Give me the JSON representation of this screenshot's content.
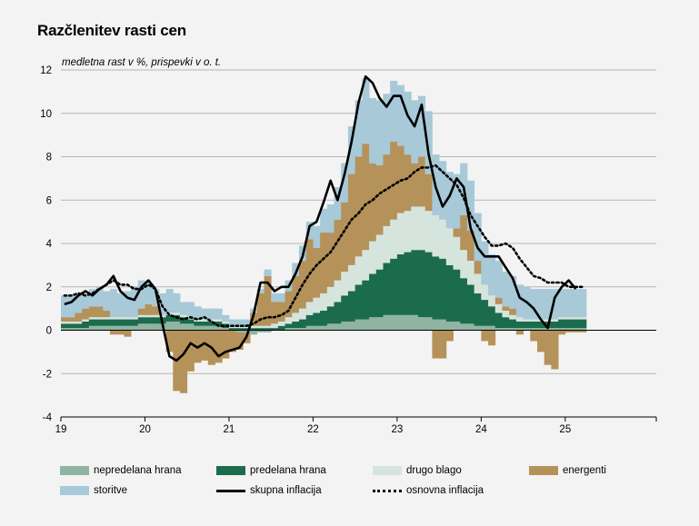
{
  "title": "Razčlenitev rasti cen",
  "ylabel": "medletna rast v %, prispevki v o. t.",
  "chart_data": {
    "type": "bar",
    "stacked": true,
    "ylim": [
      -4,
      12
    ],
    "yticks": [
      -4,
      -2,
      0,
      2,
      4,
      6,
      8,
      10,
      12
    ],
    "xticks": [
      {
        "label": "19",
        "index": 0
      },
      {
        "label": "20",
        "index": 12
      },
      {
        "label": "21",
        "index": 24
      },
      {
        "label": "22",
        "index": 36
      },
      {
        "label": "23",
        "index": 48
      },
      {
        "label": "24",
        "index": 60
      },
      {
        "label": "25",
        "index": 72
      }
    ],
    "months": 85,
    "grid": true,
    "legend_position": "bottom",
    "series": [
      {
        "name": "nepredelana hrana",
        "color": "#8fb5a2",
        "values": [
          0.1,
          0.1,
          0.1,
          0.1,
          0.2,
          0.2,
          0.2,
          0.2,
          0.2,
          0.2,
          0.2,
          0.3,
          0.3,
          0.3,
          0.3,
          0.4,
          0.4,
          0.3,
          0.3,
          0.2,
          0.2,
          0.2,
          0.2,
          0.1,
          0.0,
          -0.1,
          -0.1,
          -0.2,
          -0.1,
          -0.1,
          0.0,
          0.0,
          0.1,
          0.1,
          0.1,
          0.2,
          0.2,
          0.2,
          0.3,
          0.3,
          0.4,
          0.4,
          0.5,
          0.5,
          0.6,
          0.6,
          0.7,
          0.7,
          0.7,
          0.7,
          0.7,
          0.6,
          0.6,
          0.5,
          0.5,
          0.4,
          0.4,
          0.3,
          0.3,
          0.2,
          0.2,
          0.2,
          0.1,
          0.1,
          0.1,
          0.1,
          0.1,
          0.1,
          0.1,
          0.1,
          0.1,
          0.1,
          0.1,
          0.1,
          0.1
        ]
      },
      {
        "name": "predelana hrana",
        "color": "#1b6b4d",
        "values": [
          0.2,
          0.2,
          0.2,
          0.3,
          0.3,
          0.3,
          0.3,
          0.3,
          0.3,
          0.3,
          0.3,
          0.3,
          0.3,
          0.3,
          0.3,
          0.3,
          0.3,
          0.3,
          0.2,
          0.2,
          0.2,
          0.2,
          0.2,
          0.2,
          0.1,
          0.1,
          0.1,
          0.1,
          0.1,
          0.1,
          0.1,
          0.2,
          0.2,
          0.3,
          0.4,
          0.5,
          0.6,
          0.7,
          0.8,
          1.0,
          1.2,
          1.4,
          1.6,
          1.8,
          2.0,
          2.2,
          2.4,
          2.6,
          2.8,
          2.9,
          3.0,
          3.1,
          3.0,
          2.9,
          2.8,
          2.6,
          2.4,
          2.1,
          1.8,
          1.5,
          1.2,
          0.9,
          0.7,
          0.5,
          0.4,
          0.3,
          0.3,
          0.3,
          0.3,
          0.3,
          0.3,
          0.4,
          0.4,
          0.4,
          0.4
        ]
      },
      {
        "name": "drugo blago",
        "color": "#d6e4de",
        "values": [
          0.1,
          0.1,
          0.1,
          0.1,
          0.1,
          0.1,
          0.1,
          0.1,
          0.1,
          0.1,
          0.1,
          0.1,
          0.1,
          0.1,
          0.1,
          0.1,
          0.1,
          0.1,
          0.1,
          0.1,
          0.1,
          0.1,
          0.1,
          0.1,
          0.1,
          0.1,
          0.1,
          0.1,
          0.1,
          0.1,
          0.2,
          0.2,
          0.3,
          0.4,
          0.5,
          0.6,
          0.7,
          0.8,
          0.9,
          1.0,
          1.1,
          1.2,
          1.3,
          1.4,
          1.5,
          1.6,
          1.7,
          1.8,
          1.9,
          1.9,
          2.0,
          2.0,
          1.9,
          1.9,
          1.8,
          1.7,
          1.5,
          1.3,
          1.1,
          0.9,
          0.7,
          0.5,
          0.4,
          0.3,
          0.2,
          0.2,
          0.1,
          0.1,
          0.1,
          0.1,
          0.1,
          0.1,
          0.1,
          0.1,
          0.1
        ]
      },
      {
        "name": "energenti",
        "color": "#b5925a",
        "values": [
          0.2,
          0.2,
          0.4,
          0.5,
          0.5,
          0.5,
          0.3,
          -0.2,
          -0.2,
          -0.3,
          0.0,
          0.3,
          0.5,
          0.4,
          0.0,
          -1.0,
          -2.8,
          -2.9,
          -1.9,
          -1.5,
          -1.4,
          -1.6,
          -1.5,
          -1.3,
          -1.0,
          -0.8,
          -0.5,
          0.6,
          1.5,
          2.3,
          1.0,
          0.9,
          1.2,
          1.7,
          2.2,
          2.9,
          2.3,
          2.8,
          2.5,
          2.8,
          3.2,
          4.2,
          4.6,
          4.9,
          3.6,
          3.2,
          3.3,
          3.6,
          3.1,
          2.6,
          2.0,
          2.3,
          1.7,
          -1.3,
          -1.3,
          -0.5,
          0.4,
          1.6,
          1.4,
          0.6,
          -0.5,
          -0.7,
          0.3,
          0.2,
          0.3,
          -0.2,
          0.0,
          -0.5,
          -1.0,
          -1.6,
          -1.8,
          -0.2,
          -0.1,
          -0.1,
          -0.1
        ]
      },
      {
        "name": "storitve",
        "color": "#a7c9d8",
        "values": [
          1.0,
          1.0,
          0.9,
          0.6,
          0.8,
          0.9,
          0.9,
          1.3,
          1.1,
          1.2,
          1.4,
          1.3,
          1.0,
          0.8,
          1.0,
          1.1,
          0.9,
          0.6,
          0.7,
          0.6,
          0.5,
          0.5,
          0.5,
          0.3,
          0.3,
          0.3,
          0.3,
          0.2,
          0.2,
          0.3,
          0.4,
          0.4,
          0.5,
          0.6,
          0.7,
          0.8,
          1.0,
          1.1,
          1.3,
          1.5,
          1.8,
          2.2,
          2.6,
          3.0,
          3.0,
          3.0,
          2.8,
          2.8,
          2.8,
          2.9,
          2.9,
          2.8,
          2.9,
          2.8,
          2.7,
          2.6,
          2.5,
          2.4,
          2.3,
          2.2,
          2.0,
          1.9,
          1.7,
          1.6,
          1.5,
          1.5,
          1.5,
          1.4,
          1.4,
          1.4,
          1.4,
          1.3,
          1.3,
          1.3,
          1.3
        ]
      },
      {
        "name": "skupna inflacija",
        "type": "line",
        "color": "#000000",
        "style": "solid",
        "values": [
          1.2,
          1.3,
          1.6,
          1.8,
          1.6,
          1.9,
          2.1,
          2.5,
          1.8,
          1.5,
          1.4,
          2.0,
          2.3,
          1.9,
          0.3,
          -1.2,
          -1.4,
          -1.1,
          -0.6,
          -0.8,
          -0.6,
          -0.8,
          -1.2,
          -1.0,
          -0.9,
          -0.8,
          -0.3,
          0.7,
          2.2,
          2.2,
          1.8,
          2.0,
          2.0,
          2.6,
          3.4,
          4.8,
          5.0,
          5.9,
          6.9,
          6.0,
          7.2,
          8.7,
          10.5,
          11.7,
          11.4,
          10.7,
          10.3,
          10.8,
          10.8,
          9.9,
          9.4,
          10.4,
          8.1,
          6.6,
          5.7,
          6.2,
          7.0,
          6.6,
          4.7,
          3.8,
          3.4,
          3.4,
          3.4,
          2.9,
          2.4,
          1.5,
          1.3,
          1.0,
          0.5,
          0.1,
          1.5,
          2.0,
          2.3,
          1.9
        ]
      },
      {
        "name": "osnovna inflacija",
        "type": "line",
        "color": "#000000",
        "style": "dotted",
        "values": [
          1.6,
          1.6,
          1.7,
          1.6,
          1.7,
          1.9,
          2.1,
          2.3,
          2.1,
          2.1,
          1.9,
          1.9,
          2.1,
          1.9,
          1.1,
          0.7,
          0.6,
          0.5,
          0.6,
          0.5,
          0.6,
          0.4,
          0.2,
          0.2,
          0.2,
          0.2,
          0.2,
          0.3,
          0.5,
          0.6,
          0.6,
          0.7,
          0.9,
          1.5,
          2.1,
          2.6,
          3.0,
          3.3,
          3.6,
          4.1,
          4.6,
          5.1,
          5.4,
          5.8,
          6.0,
          6.3,
          6.5,
          6.7,
          6.9,
          7.0,
          7.3,
          7.5,
          7.5,
          7.6,
          7.3,
          7.0,
          6.7,
          6.1,
          5.3,
          4.8,
          4.3,
          3.9,
          3.9,
          4.0,
          3.8,
          3.3,
          2.9,
          2.5,
          2.4,
          2.2,
          2.2,
          2.2,
          2.0,
          2.0,
          2.0
        ]
      }
    ]
  },
  "legend": {
    "nepredelana_hrana": "nepredelana hrana",
    "predelana_hrana": "predelana hrana",
    "drugo_blago": "drugo blago",
    "energenti": "energenti",
    "storitve": "storitve",
    "skupna_inflacija": "skupna inflacija",
    "osnovna_inflacija": "osnovna inflacija"
  }
}
